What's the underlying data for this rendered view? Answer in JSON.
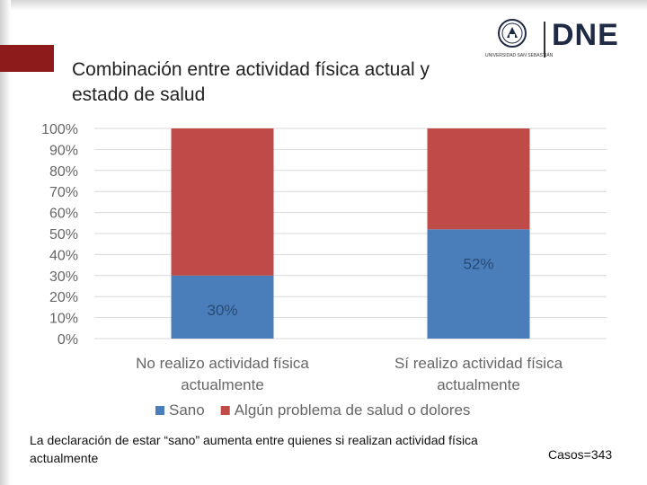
{
  "slide": {
    "title": "Combinación entre actividad física actual y estado de salud",
    "footnote": "La declaración de estar “sano” aumenta entre quienes si realizan actividad física actualmente",
    "cases": "Casos=343"
  },
  "logos": {
    "university": "UNIVERSIDAD SAN SEBASTIÁN",
    "dne": "DNE"
  },
  "colors": {
    "accent": "#8e1b1b",
    "sano": "#4a7ebb",
    "problema": "#be4b48"
  },
  "chart_data": {
    "type": "bar",
    "stacked": true,
    "percent": true,
    "categories": [
      "No realizo actividad física actualmente",
      "Sí realizo actividad física actualmente"
    ],
    "series": [
      {
        "name": "Sano",
        "values": [
          30,
          52
        ],
        "labels": [
          "30%",
          "52%"
        ]
      },
      {
        "name": "Algún problema de salud o dolores",
        "values": [
          70,
          48
        ]
      }
    ],
    "ylim": [
      0,
      100
    ],
    "yticks": [
      "0%",
      "10%",
      "20%",
      "30%",
      "40%",
      "50%",
      "60%",
      "70%",
      "80%",
      "90%",
      "100%"
    ],
    "grid": true,
    "legend": "bottom"
  }
}
